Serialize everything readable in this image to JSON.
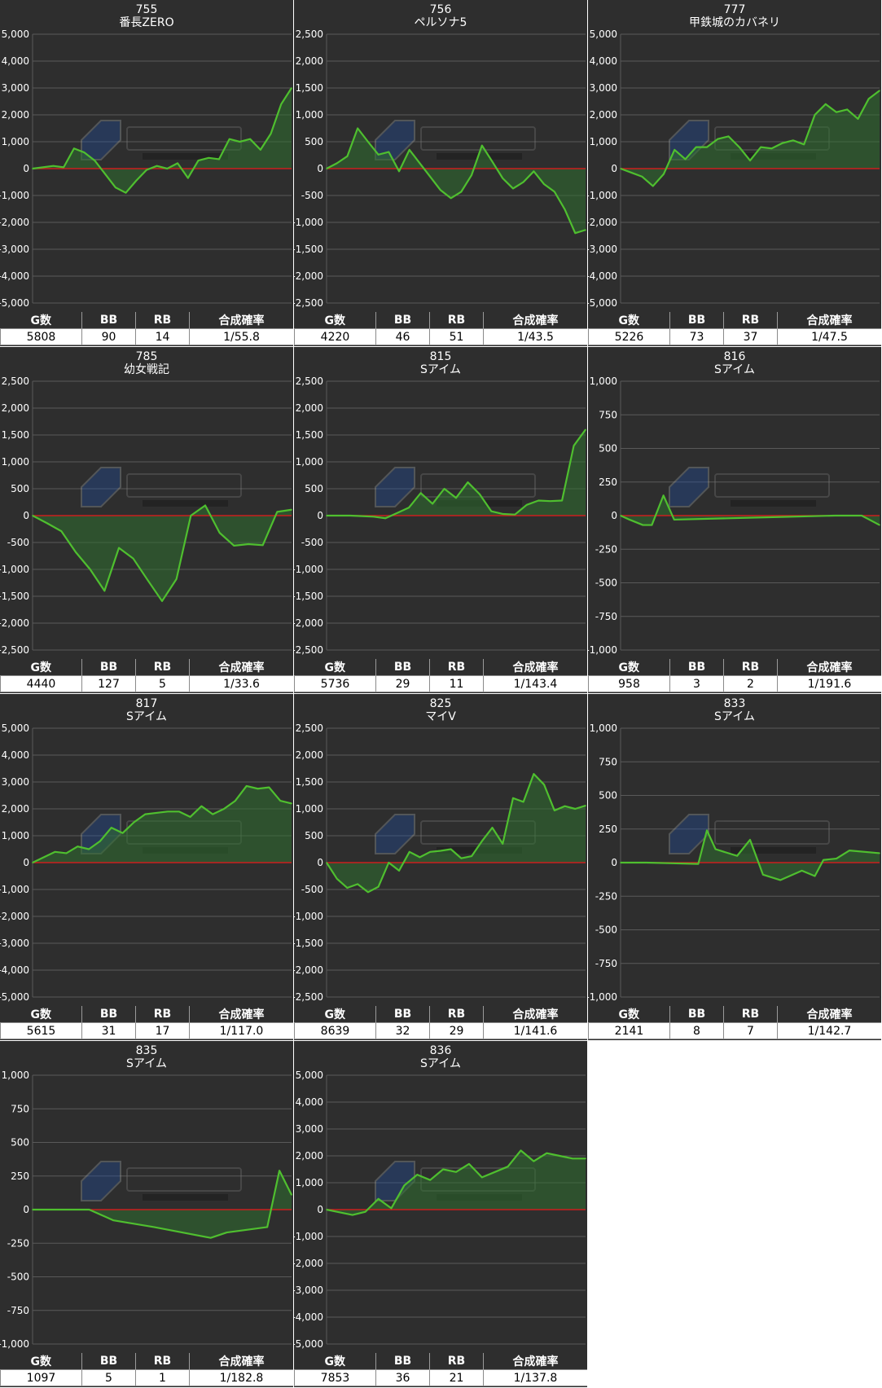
{
  "columns": [
    "G数",
    "BB",
    "RB",
    "合成確率"
  ],
  "colors": {
    "panel_bg": "#2e2e2e",
    "grid_line": "#5a5a5a",
    "zero_line": "#cc1f1f",
    "series_line": "#4fbf2f",
    "area_fill": "#2f6f2f"
  },
  "chart_data": [
    {
      "type": "area",
      "title": "755",
      "subtitle": "番長ZERO",
      "xlabel": "",
      "ylabel": "",
      "ylim": [
        -5000,
        5000
      ],
      "yticks": [
        5000,
        4000,
        3000,
        2000,
        1000,
        0,
        -1000,
        -2000,
        -3000,
        -4000,
        -5000
      ],
      "ytick_labels": [
        "5,000",
        "4,000",
        "3,000",
        "2,000",
        "1,000",
        "0",
        "-1,000",
        "-2,000",
        "-3,000",
        "-4,000",
        "-5,000"
      ],
      "grid": true,
      "values": [
        0,
        50,
        100,
        50,
        750,
        600,
        300,
        -200,
        -700,
        -900,
        -450,
        -50,
        100,
        0,
        200,
        -350,
        300,
        400,
        350,
        1100,
        1000,
        1100,
        700,
        1300,
        2400,
        3000
      ],
      "stats": {
        "g": "5808",
        "bb": "90",
        "rb": "14",
        "prob": "1/55.8"
      }
    },
    {
      "type": "area",
      "title": "756",
      "subtitle": "ペルソナ5",
      "xlabel": "",
      "ylabel": "",
      "ylim": [
        -2500,
        2500
      ],
      "yticks": [
        2500,
        2000,
        1500,
        1000,
        500,
        0,
        -500,
        -1000,
        -1500,
        -2000,
        -2500
      ],
      "ytick_labels": [
        "2,500",
        "2,000",
        "1,500",
        "1,000",
        "500",
        "0",
        "-500",
        "-1,000",
        "-1,500",
        "-2,000",
        "-2,500"
      ],
      "grid": true,
      "values": [
        0,
        100,
        230,
        750,
        500,
        260,
        310,
        -50,
        350,
        100,
        -150,
        -400,
        -550,
        -430,
        -120,
        430,
        130,
        -180,
        -370,
        -250,
        -50,
        -290,
        -430,
        -760,
        -1200,
        -1140
      ],
      "stats": {
        "g": "4220",
        "bb": "46",
        "rb": "51",
        "prob": "1/43.5"
      }
    },
    {
      "type": "area",
      "title": "777",
      "subtitle": "甲鉄城のカバネリ",
      "xlabel": "",
      "ylabel": "",
      "ylim": [
        -5000,
        5000
      ],
      "yticks": [
        5000,
        4000,
        3000,
        2000,
        1000,
        0,
        -1000,
        -2000,
        -3000,
        -4000,
        -5000
      ],
      "ytick_labels": [
        "5,000",
        "4,000",
        "3,000",
        "2,000",
        "1,000",
        "0",
        "-1,000",
        "-2,000",
        "-3,000",
        "-4,000",
        "-5,000"
      ],
      "grid": true,
      "values": [
        0,
        -150,
        -300,
        -650,
        -200,
        700,
        350,
        800,
        800,
        1100,
        1200,
        800,
        300,
        800,
        750,
        950,
        1050,
        900,
        2000,
        2400,
        2100,
        2200,
        1850,
        2600,
        2900
      ],
      "stats": {
        "g": "5226",
        "bb": "73",
        "rb": "37",
        "prob": "1/47.5"
      }
    },
    {
      "type": "area",
      "title": "785",
      "subtitle": "幼女戦記",
      "xlabel": "",
      "ylabel": "",
      "ylim": [
        -2500,
        2500
      ],
      "yticks": [
        2500,
        2000,
        1500,
        1000,
        500,
        0,
        -500,
        -1000,
        -1500,
        -2000,
        -2500
      ],
      "ytick_labels": [
        "2,500",
        "2,000",
        "1,500",
        "1,000",
        "500",
        "0",
        "-500",
        "-1,000",
        "-1,500",
        "-2,000",
        "-2,500"
      ],
      "grid": true,
      "values": [
        0,
        -140,
        -290,
        -680,
        -1000,
        -1400,
        -600,
        -800,
        -1200,
        -1590,
        -1180,
        0,
        190,
        -320,
        -560,
        -530,
        -550,
        70,
        110
      ],
      "stats": {
        "g": "4440",
        "bb": "127",
        "rb": "5",
        "prob": "1/33.6"
      }
    },
    {
      "type": "area",
      "title": "815",
      "subtitle": "Sアイム",
      "xlabel": "",
      "ylabel": "",
      "ylim": [
        -2500,
        2500
      ],
      "yticks": [
        2500,
        2000,
        1500,
        1000,
        500,
        0,
        -500,
        -1000,
        -1500,
        -2000,
        -2500
      ],
      "ytick_labels": [
        "2,500",
        "2,000",
        "1,500",
        "1,000",
        "500",
        "0",
        "-500",
        "-1,000",
        "-1,500",
        "-2,000",
        "-2,500"
      ],
      "grid": true,
      "values": [
        0,
        0,
        0,
        -10,
        -20,
        -50,
        50,
        150,
        420,
        220,
        500,
        330,
        620,
        400,
        80,
        30,
        20,
        200,
        280,
        270,
        280,
        1300,
        1600
      ],
      "stats": {
        "g": "5736",
        "bb": "29",
        "rb": "11",
        "prob": "1/143.4"
      }
    },
    {
      "type": "area",
      "title": "816",
      "subtitle": "Sアイム",
      "xlabel": "",
      "ylabel": "",
      "ylim": [
        -1000,
        1000
      ],
      "yticks": [
        1000,
        750,
        500,
        250,
        0,
        -250,
        -500,
        -750,
        -1000
      ],
      "ytick_labels": [
        "1,000",
        "750",
        "500",
        "250",
        "0",
        "-250",
        "-500",
        "-750",
        "-1,000"
      ],
      "grid": true,
      "values": [
        0,
        -30,
        -70,
        -70,
        150,
        -30,
        -20,
        -10,
        0,
        0,
        -70
      ],
      "x": [
        0,
        10,
        25,
        35,
        48,
        60,
        120,
        180,
        240,
        270,
        290
      ],
      "stats": {
        "g": "958",
        "bb": "3",
        "rb": "2",
        "prob": "1/191.6"
      }
    },
    {
      "type": "area",
      "title": "817",
      "subtitle": "Sアイム",
      "xlabel": "",
      "ylabel": "",
      "ylim": [
        -5000,
        5000
      ],
      "yticks": [
        5000,
        4000,
        3000,
        2000,
        1000,
        0,
        -1000,
        -2000,
        -3000,
        -4000,
        -5000
      ],
      "ytick_labels": [
        "5,000",
        "4,000",
        "3,000",
        "2,000",
        "1,000",
        "0",
        "-1,000",
        "-2,000",
        "-3,000",
        "-4,000",
        "-5,000"
      ],
      "grid": true,
      "values": [
        0,
        200,
        400,
        350,
        600,
        500,
        800,
        1300,
        1100,
        1500,
        1800,
        1850,
        1900,
        1900,
        1700,
        2100,
        1800,
        2000,
        2300,
        2850,
        2750,
        2800,
        2300,
        2200
      ],
      "stats": {
        "g": "5615",
        "bb": "31",
        "rb": "17",
        "prob": "1/117.0"
      }
    },
    {
      "type": "area",
      "title": "825",
      "subtitle": "マイV",
      "xlabel": "",
      "ylabel": "",
      "ylim": [
        -2500,
        2500
      ],
      "yticks": [
        2500,
        2000,
        1500,
        1000,
        500,
        0,
        -500,
        -1000,
        -1500,
        -2000,
        -2500
      ],
      "ytick_labels": [
        "2,500",
        "2,000",
        "1,500",
        "1,000",
        "500",
        "0",
        "-500",
        "-1,000",
        "-1,500",
        "-2,000",
        "-2,500"
      ],
      "grid": true,
      "values": [
        0,
        -300,
        -470,
        -400,
        -550,
        -450,
        0,
        -150,
        200,
        100,
        200,
        220,
        250,
        80,
        120,
        400,
        650,
        350,
        1200,
        1130,
        1650,
        1450,
        970,
        1050,
        1000,
        1060
      ],
      "stats": {
        "g": "8639",
        "bb": "32",
        "rb": "29",
        "prob": "1/141.6"
      }
    },
    {
      "type": "area",
      "title": "833",
      "subtitle": "Sアイム",
      "xlabel": "",
      "ylabel": "",
      "ylim": [
        -1000,
        1000
      ],
      "yticks": [
        1000,
        750,
        500,
        250,
        0,
        -250,
        -500,
        -750,
        -1000
      ],
      "ytick_labels": [
        "1,000",
        "750",
        "500",
        "250",
        "0",
        "-250",
        "-500",
        "-750",
        "-1,000"
      ],
      "grid": true,
      "values": [
        0,
        0,
        -5,
        -10,
        240,
        100,
        50,
        170,
        -90,
        -130,
        -60,
        -100,
        20,
        30,
        90,
        70
      ],
      "x": [
        0,
        30,
        60,
        90,
        100,
        110,
        135,
        150,
        165,
        185,
        210,
        225,
        235,
        250,
        265,
        300
      ],
      "stats": {
        "g": "2141",
        "bb": "8",
        "rb": "7",
        "prob": "1/142.7"
      }
    },
    {
      "type": "area",
      "title": "835",
      "subtitle": "Sアイム",
      "xlabel": "",
      "ylabel": "",
      "ylim": [
        -1000,
        1000
      ],
      "yticks": [
        1000,
        750,
        500,
        250,
        0,
        -250,
        -500,
        -750,
        -1000
      ],
      "ytick_labels": [
        "1,000",
        "750",
        "500",
        "250",
        "0",
        "-250",
        "-500",
        "-750",
        "-1,000"
      ],
      "grid": true,
      "values": [
        0,
        0,
        0,
        0,
        -80,
        -130,
        -210,
        -170,
        -130,
        290,
        110
      ],
      "x": [
        0,
        30,
        50,
        70,
        100,
        150,
        220,
        240,
        290,
        305,
        320
      ],
      "stats": {
        "g": "1097",
        "bb": "5",
        "rb": "1",
        "prob": "1/182.8"
      }
    },
    {
      "type": "area",
      "title": "836",
      "subtitle": "Sアイム",
      "xlabel": "",
      "ylabel": "",
      "ylim": [
        -5000,
        5000
      ],
      "yticks": [
        5000,
        4000,
        3000,
        2000,
        1000,
        0,
        -1000,
        -2000,
        -3000,
        -4000,
        -5000
      ],
      "ytick_labels": [
        "5,000",
        "4,000",
        "3,000",
        "2,000",
        "1,000",
        "0",
        "-1,000",
        "-2,000",
        "-3,000",
        "-4,000",
        "-5,000"
      ],
      "grid": true,
      "values": [
        0,
        -100,
        -200,
        -80,
        400,
        50,
        900,
        1300,
        1100,
        1500,
        1400,
        1700,
        1200,
        1400,
        1600,
        2200,
        1800,
        2100,
        2000,
        1900,
        1900
      ],
      "stats": {
        "g": "7853",
        "bb": "36",
        "rb": "21",
        "prob": "1/137.8"
      }
    }
  ]
}
